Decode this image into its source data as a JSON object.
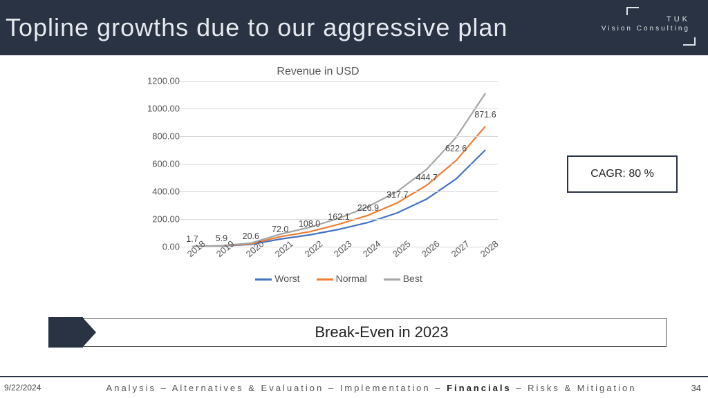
{
  "header": {
    "title": "Topline growths due to our aggressive plan",
    "logo_line1": "TUK",
    "logo_line2": "Vision Consulting"
  },
  "chart": {
    "type": "line",
    "title": "Revenue in USD",
    "title_fontsize": 16,
    "title_color": "#555555",
    "background_color": "#ffffff",
    "grid_color": "#d8d8d8",
    "axis_text_color": "#555555",
    "tick_fontsize": 13,
    "ylim": [
      0,
      1200
    ],
    "ytick_step": 200,
    "yticks": [
      "0.00",
      "200.00",
      "400.00",
      "600.00",
      "800.00",
      "1000.00",
      "1200.00"
    ],
    "categories": [
      "2018",
      "2019",
      "2020",
      "2021",
      "2022",
      "2023",
      "2024",
      "2025",
      "2026",
      "2027",
      "2028"
    ],
    "series": [
      {
        "name": "Worst",
        "color": "#4472c4",
        "width": 2.2,
        "values": [
          1.7,
          5.0,
          16.0,
          55.0,
          85.0,
          125.0,
          175.0,
          245.0,
          345.0,
          490.0,
          700.0
        ]
      },
      {
        "name": "Normal",
        "color": "#ed7d31",
        "width": 2.2,
        "values": [
          1.7,
          5.9,
          20.6,
          72.0,
          108.0,
          162.1,
          226.9,
          317.7,
          444.7,
          622.6,
          871.6
        ]
      },
      {
        "name": "Best",
        "color": "#a5a5a5",
        "width": 2.2,
        "values": [
          1.7,
          7.0,
          26.0,
          90.0,
          140.0,
          205.0,
          290.0,
          400.0,
          560.0,
          790.0,
          1110.0
        ]
      }
    ],
    "data_labels": {
      "series_index": 1,
      "fontsize": 12.5,
      "color": "#444444",
      "values": [
        "1.7",
        "5.9",
        "20.6",
        "72.0",
        "108.0",
        "162.1",
        "226.9",
        "317.7",
        "444.7",
        "622.6",
        "871.6"
      ]
    },
    "legend_position": "bottom",
    "x_tick_rotation": -40
  },
  "cagr": {
    "label": "CAGR: 80 %"
  },
  "callout": {
    "text": "Break-Even in 2023"
  },
  "footer": {
    "date": "9/22/2024",
    "crumbs": [
      "Analysis",
      "Alternatives & Evaluation",
      "Implementation",
      "Financials",
      "Risks & Mitigation"
    ],
    "active_index": 3,
    "page_number": "34"
  }
}
